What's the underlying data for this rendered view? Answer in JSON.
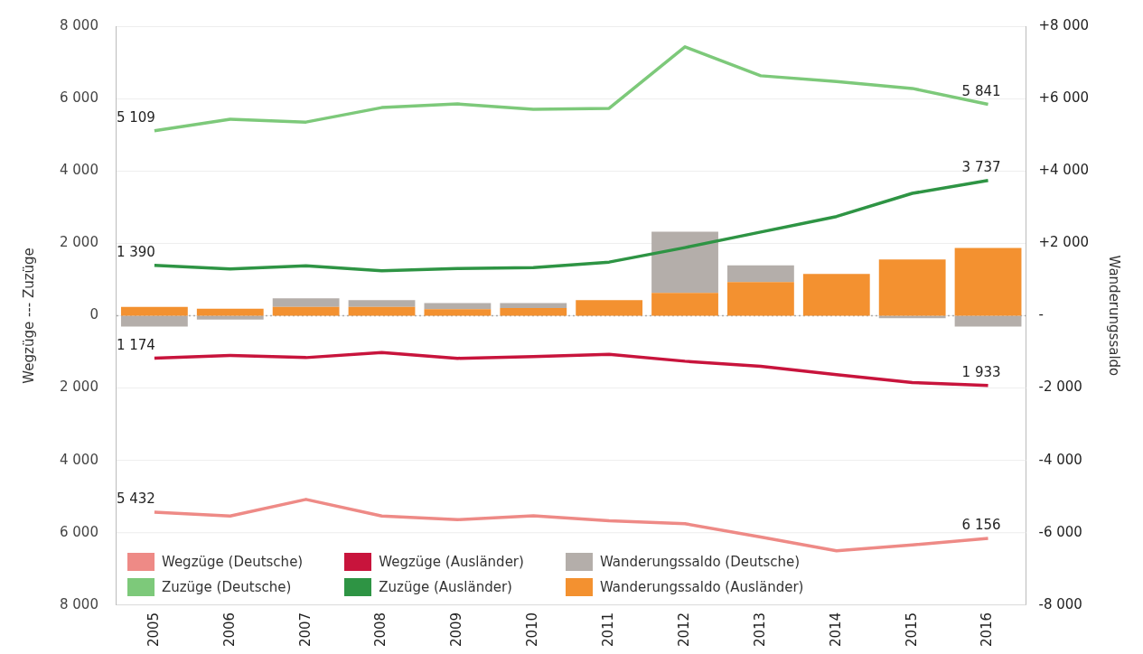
{
  "chart_data": {
    "type": "line",
    "ylabel": "Wegzüge --- Zuzüge",
    "y2label": "Wanderungssaldo",
    "categories": [
      "2005",
      "2006",
      "2007",
      "2008",
      "2009",
      "2010",
      "2011",
      "2012",
      "2013",
      "2014",
      "2015",
      "2016"
    ],
    "series": [
      {
        "name": "Wegzüge (Deutsche)",
        "axis": "y3",
        "color": "#ee8a86",
        "values": [
          5432,
          5540,
          5080,
          5540,
          5640,
          5530,
          5670,
          5750,
          6120,
          6500,
          6340,
          6156
        ],
        "value_labels": [
          "5 432",
          null,
          null,
          null,
          null,
          null,
          null,
          null,
          null,
          null,
          null,
          "6 156"
        ]
      },
      {
        "name": "Zuzüge (Deutsche)",
        "color": "#7dc97a",
        "values": [
          5109,
          5430,
          5350,
          5750,
          5850,
          5700,
          5730,
          7430,
          6630,
          6470,
          6280,
          5841
        ],
        "value_labels": [
          "5 109",
          null,
          null,
          null,
          null,
          null,
          null,
          null,
          null,
          null,
          null,
          "5 841"
        ]
      },
      {
        "name": "Wegzüge (Ausländer)",
        "axis": "y3",
        "color": "#c8143c",
        "values": [
          1174,
          1100,
          1160,
          1020,
          1180,
          1130,
          1070,
          1260,
          1400,
          1630,
          1850,
          1933
        ],
        "value_labels": [
          "1 174",
          null,
          null,
          null,
          null,
          null,
          null,
          null,
          null,
          null,
          null,
          "1 933"
        ]
      },
      {
        "name": "Zuzüge (Ausländer)",
        "color": "#2e9444",
        "values": [
          1390,
          1290,
          1380,
          1240,
          1300,
          1330,
          1480,
          1880,
          2310,
          2740,
          3380,
          3737
        ],
        "value_labels": [
          "1 390",
          null,
          null,
          null,
          null,
          null,
          null,
          null,
          null,
          null,
          null,
          "3 737"
        ]
      },
      {
        "name": "Wanderungssaldo (Ausländer)",
        "type": "bar",
        "axis": "y2",
        "color": "#f39130",
        "values": [
          240,
          190,
          240,
          240,
          180,
          210,
          430,
          630,
          930,
          1150,
          1550,
          1870
        ]
      },
      {
        "name": "Wanderungssaldo (Deutsche)",
        "type": "bar",
        "axis": "y2",
        "color": "#b4aeaa",
        "values": [
          -300,
          -110,
          240,
          190,
          170,
          140,
          0,
          1690,
          460,
          0,
          -70,
          -300
        ]
      }
    ],
    "stacked": true,
    "ylim": [
      -8000,
      8000
    ],
    "yticks": [
      0,
      {
        "value": 2000,
        "label": "2 000"
      },
      {
        "value": 4000,
        "label": "4 000"
      },
      {
        "value": 6000,
        "label": "6 000"
      },
      {
        "value": 8000,
        "label": "8 000"
      }
    ],
    "y3lim": [
      8000,
      -8000
    ],
    "y3ticks": [
      {
        "value": 2000,
        "label": "2 000"
      },
      {
        "value": 4000,
        "label": "4 000"
      },
      {
        "value": 6000,
        "label": "6 000"
      },
      {
        "value": 8000,
        "label": "8 000"
      }
    ],
    "y2lim": [
      -8000,
      8000
    ],
    "y2ticks": [
      {
        "value": -8000,
        "label": "-8 000"
      },
      {
        "value": -6000,
        "label": "-6 000"
      },
      {
        "value": -4000,
        "label": "-4 000"
      },
      {
        "value": -2000,
        "label": "-2 000"
      },
      {
        "value": 0,
        "label": "-"
      },
      {
        "value": 2000,
        "label": "+2 000"
      },
      {
        "value": 4000,
        "label": "+4 000"
      },
      {
        "value": 6000,
        "label": "+6 000"
      },
      {
        "value": 8000,
        "label": "+8 000"
      }
    ],
    "ref_lines": [
      {
        "axis": "y",
        "value": 0,
        "color": "#aaaaaa",
        "line_style": "dotted"
      }
    ],
    "grid": "y",
    "legend": "bottom left",
    "marker": "none",
    "line_style": "solid"
  }
}
